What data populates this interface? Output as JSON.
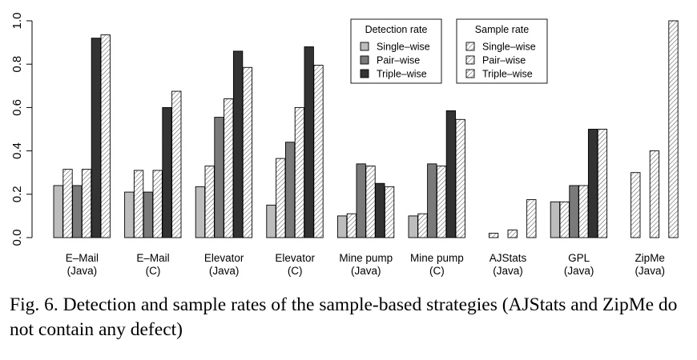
{
  "caption": "Fig. 6.  Detection and sample rates of the sample-based strategies (AJStats and ZipMe do not contain any defect)",
  "chart_data": {
    "type": "bar",
    "categories": [
      [
        "E–Mail",
        "(Java)"
      ],
      [
        "E–Mail",
        "(C)"
      ],
      [
        "Elevator",
        "(Java)"
      ],
      [
        "Elevator",
        "(C)"
      ],
      [
        "Mine pump",
        "(Java)"
      ],
      [
        "Mine pump",
        "(C)"
      ],
      [
        "AJStats",
        "(Java)"
      ],
      [
        "GPL",
        "(Java)"
      ],
      [
        "ZipMe",
        "(Java)"
      ]
    ],
    "series": [
      {
        "name": "Single–wise",
        "group": "Detection rate",
        "kind": "detection",
        "fill": "#bdbdbd",
        "values": [
          0.24,
          0.21,
          0.235,
          0.15,
          0.1,
          0.1,
          null,
          0.165,
          null
        ]
      },
      {
        "name": "Single–wise",
        "group": "Sample rate",
        "kind": "sample",
        "fill": "#f2f2f2",
        "values": [
          0.315,
          0.31,
          0.33,
          0.365,
          0.11,
          0.11,
          0.02,
          0.165,
          0.3
        ]
      },
      {
        "name": "Pair–wise",
        "group": "Detection rate",
        "kind": "detection",
        "fill": "#7a7a7a",
        "values": [
          0.24,
          0.21,
          0.555,
          0.44,
          0.34,
          0.34,
          null,
          0.24,
          null
        ]
      },
      {
        "name": "Pair–wise",
        "group": "Sample rate",
        "kind": "sample",
        "fill": "#dcdcdc",
        "values": [
          0.315,
          0.31,
          0.64,
          0.6,
          0.33,
          0.33,
          0.035,
          0.24,
          0.4
        ]
      },
      {
        "name": "Triple–wise",
        "group": "Detection rate",
        "kind": "detection",
        "fill": "#333333",
        "values": [
          0.92,
          0.6,
          0.86,
          0.88,
          0.25,
          0.585,
          null,
          0.5,
          null
        ]
      },
      {
        "name": "Triple–wise",
        "group": "Sample rate",
        "kind": "sample",
        "fill": "#c4c4c4",
        "values": [
          0.935,
          0.675,
          0.785,
          0.795,
          0.235,
          0.545,
          0.175,
          0.5,
          1.0
        ]
      }
    ],
    "legend": [
      {
        "title": "Detection rate",
        "entries": [
          "Single–wise",
          "Pair–wise",
          "Triple–wise"
        ]
      },
      {
        "title": "Sample rate",
        "entries": [
          "Single–wise",
          "Pair–wise",
          "Triple–wise"
        ]
      }
    ],
    "legend_position": "top-center",
    "yticks": [
      "0.0",
      "0.2",
      "0.4",
      "0.6",
      "0.8",
      "1.0"
    ],
    "ylim": [
      0,
      1
    ],
    "grid": false
  }
}
